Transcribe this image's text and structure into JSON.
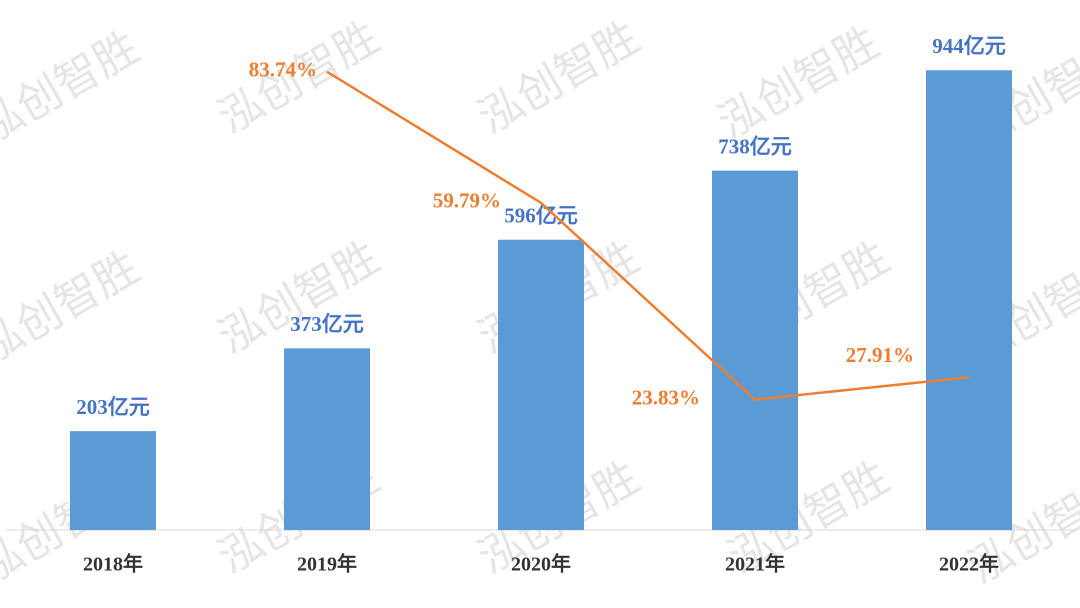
{
  "chart_data": {
    "type": "bar-line",
    "watermark": "泓创智胜",
    "categories": [
      "2018年",
      "2019年",
      "2020年",
      "2021年",
      "2022年"
    ],
    "series": [
      {
        "type": "bar",
        "color": "#5b9bd5",
        "values": [
          203,
          373,
          596,
          738,
          944
        ],
        "value_labels": [
          "203亿元",
          "373亿元",
          "596亿元",
          "738亿元",
          "944亿元"
        ]
      },
      {
        "type": "line",
        "axis": "y2",
        "color": "#ed7d31",
        "values": [
          null,
          83.74,
          59.79,
          23.83,
          27.91
        ],
        "value_labels": [
          null,
          "83.74%",
          "59.79%",
          "23.83%",
          "27.91%"
        ]
      }
    ],
    "ylim": [
      0,
      1000
    ],
    "y2lim": [
      0,
      89
    ]
  }
}
